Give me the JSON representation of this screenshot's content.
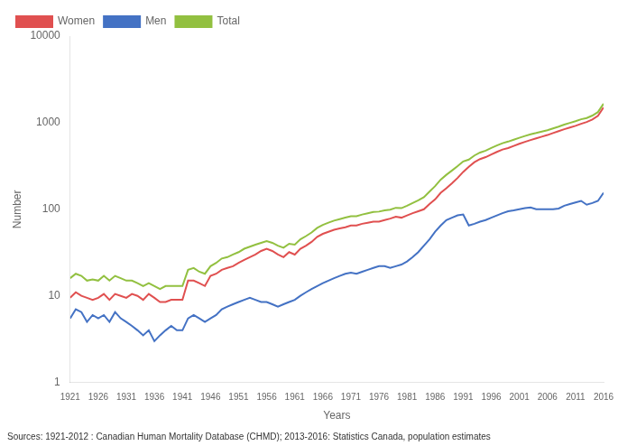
{
  "chart_data": {
    "type": "line",
    "xlabel": "Years",
    "ylabel": "Number",
    "source": "Sources: 1921-2012 : Canadian Human Mortality Database (CHMD); 2013-2016: Statistics Canada, population estimates",
    "x": [
      1921,
      1922,
      1923,
      1924,
      1925,
      1926,
      1927,
      1928,
      1929,
      1930,
      1931,
      1932,
      1933,
      1934,
      1935,
      1936,
      1937,
      1938,
      1939,
      1940,
      1941,
      1942,
      1943,
      1944,
      1945,
      1946,
      1947,
      1948,
      1949,
      1950,
      1951,
      1952,
      1953,
      1954,
      1955,
      1956,
      1957,
      1958,
      1959,
      1960,
      1961,
      1962,
      1963,
      1964,
      1965,
      1966,
      1967,
      1968,
      1969,
      1970,
      1971,
      1972,
      1973,
      1974,
      1975,
      1976,
      1977,
      1978,
      1979,
      1980,
      1981,
      1982,
      1983,
      1984,
      1985,
      1986,
      1987,
      1988,
      1989,
      1990,
      1991,
      1992,
      1993,
      1994,
      1995,
      1996,
      1997,
      1998,
      1999,
      2000,
      2001,
      2002,
      2003,
      2004,
      2005,
      2006,
      2007,
      2008,
      2009,
      2010,
      2011,
      2012,
      2013,
      2014,
      2015,
      2016
    ],
    "series": [
      {
        "name": "Women",
        "color": "#e05050",
        "values": [
          9.5,
          11.0,
          10.0,
          9.5,
          9.0,
          9.5,
          10.5,
          9.0,
          10.5,
          10.0,
          9.5,
          10.5,
          10.0,
          9.0,
          10.5,
          9.5,
          8.5,
          8.5,
          9.0,
          9.0,
          9.0,
          15.0,
          15.0,
          14.0,
          13.0,
          17.0,
          18.0,
          20.0,
          21.0,
          22.0,
          24.0,
          26.0,
          28.0,
          30.0,
          33.0,
          35.0,
          33.0,
          30.0,
          28.0,
          32.0,
          30.0,
          35.0,
          38.0,
          42.0,
          48.0,
          52.0,
          55.0,
          58.0,
          60.0,
          62.0,
          65.0,
          65.0,
          68.0,
          70.0,
          72.0,
          72.0,
          75.0,
          78.0,
          82.0,
          80.0,
          85.0,
          90.0,
          95.0,
          100.0,
          115.0,
          130.0,
          155.0,
          175.0,
          200.0,
          230.0,
          270.0,
          310.0,
          350.0,
          380.0,
          400.0,
          430.0,
          460.0,
          490.0,
          510.0,
          540.0,
          570.0,
          600.0,
          630.0,
          660.0,
          690.0,
          720.0,
          760.0,
          800.0,
          840.0,
          880.0,
          920.0,
          970.0,
          1020.0,
          1090.0,
          1200.0,
          1500.0
        ]
      },
      {
        "name": "Men",
        "color": "#4472c4",
        "values": [
          5.5,
          7.0,
          6.5,
          5.0,
          6.0,
          5.5,
          6.0,
          5.0,
          6.5,
          5.5,
          5.0,
          4.5,
          4.0,
          3.5,
          4.0,
          3.0,
          3.5,
          4.0,
          4.5,
          4.0,
          4.0,
          5.5,
          6.0,
          5.5,
          5.0,
          5.5,
          6.0,
          7.0,
          7.5,
          8.0,
          8.5,
          9.0,
          9.5,
          9.0,
          8.5,
          8.5,
          8.0,
          7.5,
          8.0,
          8.5,
          9.0,
          10.0,
          11.0,
          12.0,
          13.0,
          14.0,
          15.0,
          16.0,
          17.0,
          18.0,
          18.5,
          18.0,
          19.0,
          20.0,
          21.0,
          22.0,
          22.0,
          21.0,
          22.0,
          23.0,
          25.0,
          28.0,
          32.0,
          38.0,
          45.0,
          55.0,
          65.0,
          75.0,
          80.0,
          85.0,
          87.0,
          65.0,
          68.0,
          72.0,
          75.0,
          80.0,
          85.0,
          90.0,
          95.0,
          97.0,
          100.0,
          103.0,
          105.0,
          100.0,
          100.0,
          100.0,
          100.0,
          102.0,
          110.0,
          115.0,
          120.0,
          125.0,
          113.0,
          118.0,
          125.0,
          155.0
        ]
      },
      {
        "name": "Total",
        "color": "#92c040",
        "values": [
          16.0,
          18.0,
          17.0,
          15.0,
          15.5,
          15.0,
          17.0,
          15.0,
          17.0,
          16.0,
          15.0,
          15.0,
          14.0,
          13.0,
          14.0,
          13.0,
          12.0,
          13.0,
          13.0,
          13.0,
          13.0,
          20.0,
          21.0,
          19.0,
          18.0,
          22.0,
          24.0,
          27.0,
          28.0,
          30.0,
          32.0,
          35.0,
          37.0,
          39.0,
          41.0,
          43.0,
          41.0,
          38.0,
          36.0,
          40.0,
          39.0,
          45.0,
          49.0,
          54.0,
          61.0,
          66.0,
          70.0,
          74.0,
          77.0,
          80.0,
          83.0,
          83.0,
          87.0,
          90.0,
          93.0,
          94.0,
          97.0,
          99.0,
          104.0,
          103.0,
          110.0,
          118.0,
          127.0,
          138.0,
          160.0,
          185.0,
          220.0,
          250.0,
          280.0,
          315.0,
          357.0,
          375.0,
          418.0,
          452.0,
          475.0,
          510.0,
          545.0,
          580.0,
          605.0,
          637.0,
          670.0,
          703.0,
          735.0,
          760.0,
          790.0,
          820.0,
          860.0,
          902.0,
          950.0,
          995.0,
          1040.0,
          1095.0,
          1133.0,
          1208.0,
          1325.0,
          1655.0
        ]
      }
    ],
    "xlim": [
      1921,
      2016
    ],
    "xticks": [
      1921,
      1926,
      1931,
      1936,
      1941,
      1946,
      1951,
      1956,
      1961,
      1966,
      1971,
      1976,
      1981,
      1986,
      1991,
      1996,
      2001,
      2006,
      2011,
      2016
    ],
    "ylim": [
      1,
      10000
    ],
    "yticks": [
      1,
      10,
      100,
      1000,
      10000
    ],
    "log": "y",
    "grid": false,
    "legend": "upper left"
  }
}
